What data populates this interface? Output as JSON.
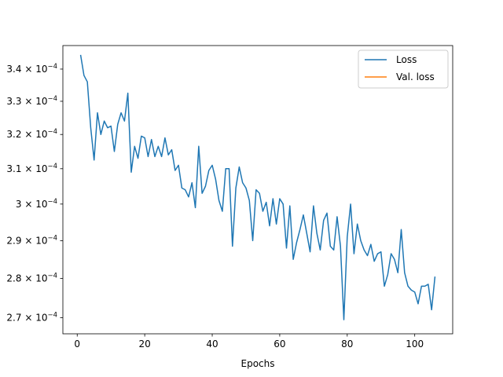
{
  "chart_data": {
    "type": "line",
    "title": "",
    "xlabel": "Epochs",
    "ylabel": "",
    "xlim": [
      -4.25,
      111.25
    ],
    "ylim": [
      0.000266,
      0.0003475
    ],
    "yscale": "log",
    "grid": false,
    "legend_position": "top-right",
    "x_ticks": [
      {
        "value": 0,
        "label": "0"
      },
      {
        "value": 20,
        "label": "20"
      },
      {
        "value": 40,
        "label": "40"
      },
      {
        "value": 60,
        "label": "60"
      },
      {
        "value": 80,
        "label": "80"
      },
      {
        "value": 100,
        "label": "100"
      }
    ],
    "y_ticks": [
      {
        "value": 0.00027,
        "mantissa": "2.7",
        "base": "10",
        "exponent": "−4"
      },
      {
        "value": 0.00028,
        "mantissa": "2.8",
        "base": "10",
        "exponent": "−4"
      },
      {
        "value": 0.00029,
        "mantissa": "2.9",
        "base": "10",
        "exponent": "−4"
      },
      {
        "value": 0.0003,
        "mantissa": "3",
        "base": "10",
        "exponent": "−4"
      },
      {
        "value": 0.00031,
        "mantissa": "3.1",
        "base": "10",
        "exponent": "−4"
      },
      {
        "value": 0.00032,
        "mantissa": "3.2",
        "base": "10",
        "exponent": "−4"
      },
      {
        "value": 0.00033,
        "mantissa": "3.3",
        "base": "10",
        "exponent": "−4"
      },
      {
        "value": 0.00034,
        "mantissa": "3.4",
        "base": "10",
        "exponent": "−4"
      }
    ],
    "series": [
      {
        "name": "Loss",
        "color": "#1f77b4",
        "x": [
          1,
          2,
          3,
          4,
          5,
          6,
          7,
          8,
          9,
          10,
          11,
          12,
          13,
          14,
          15,
          16,
          17,
          18,
          19,
          20,
          21,
          22,
          23,
          24,
          25,
          26,
          27,
          28,
          29,
          30,
          31,
          32,
          33,
          34,
          35,
          36,
          37,
          38,
          39,
          40,
          41,
          42,
          43,
          44,
          45,
          46,
          47,
          48,
          49,
          50,
          51,
          52,
          53,
          54,
          55,
          56,
          57,
          58,
          59,
          60,
          61,
          62,
          63,
          64,
          65,
          66,
          67,
          68,
          69,
          70,
          71,
          72,
          73,
          74,
          75,
          76,
          77,
          78,
          79,
          80,
          81,
          82,
          83,
          84,
          85,
          86,
          87,
          88,
          89,
          90,
          91,
          92,
          93,
          94,
          95,
          96,
          97,
          98,
          99,
          100,
          101,
          102,
          103,
          104,
          105,
          106
        ],
        "y": [
          0.0003445,
          0.000338,
          0.000336,
          0.000322,
          0.0003125,
          0.0003265,
          0.00032,
          0.000324,
          0.000322,
          0.0003225,
          0.000315,
          0.000323,
          0.0003265,
          0.000324,
          0.0003325,
          0.000309,
          0.0003165,
          0.000313,
          0.0003195,
          0.000319,
          0.0003135,
          0.0003185,
          0.0003135,
          0.0003165,
          0.0003135,
          0.000319,
          0.000314,
          0.0003155,
          0.0003095,
          0.000311,
          0.0003045,
          0.000304,
          0.000302,
          0.000306,
          0.000299,
          0.0003165,
          0.000303,
          0.000305,
          0.0003095,
          0.000311,
          0.000307,
          0.000301,
          0.000298,
          0.00031,
          0.00031,
          0.0002885,
          0.0003045,
          0.0003105,
          0.000306,
          0.0003045,
          0.000301,
          0.00029,
          0.000304,
          0.000303,
          0.000298,
          0.0003005,
          0.000294,
          0.0003015,
          0.0002945,
          0.0003015,
          0.0003,
          0.000288,
          0.0002995,
          0.000285,
          0.0002895,
          0.000293,
          0.000297,
          0.000292,
          0.000287,
          0.0002995,
          0.000292,
          0.0002875,
          0.0002955,
          0.0002975,
          0.0002885,
          0.0002875,
          0.0002965,
          0.0002885,
          0.0002695,
          0.000291,
          0.0003,
          0.0002865,
          0.0002945,
          0.00029,
          0.0002875,
          0.000286,
          0.000289,
          0.0002845,
          0.0002865,
          0.000287,
          0.000278,
          0.000281,
          0.0002865,
          0.000285,
          0.0002815,
          0.000293,
          0.0002815,
          0.000278,
          0.000277,
          0.0002765,
          0.0002735,
          0.000278,
          0.000278,
          0.0002785,
          0.000272,
          0.0002805
        ]
      },
      {
        "name": "Val. loss",
        "color": "#ff7f0e",
        "x": [],
        "y": []
      }
    ]
  }
}
